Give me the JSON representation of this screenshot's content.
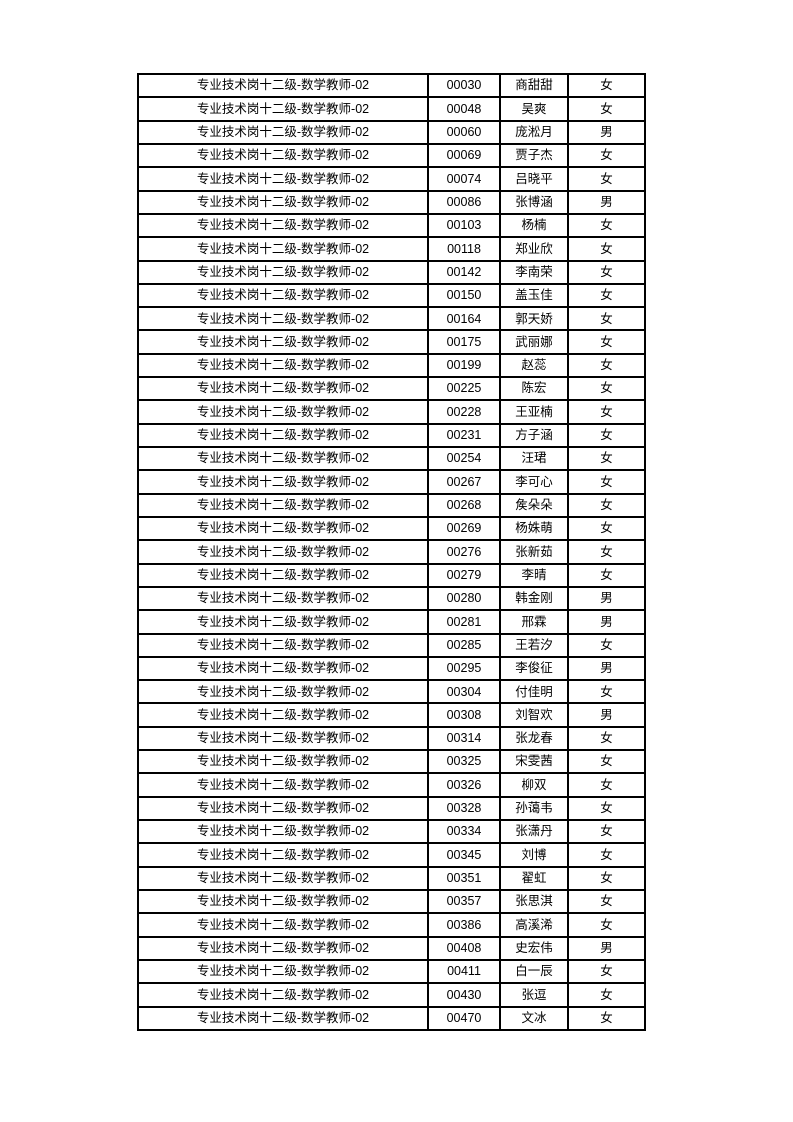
{
  "page": {
    "background": "#ffffff",
    "text_color": "#000000"
  },
  "table": {
    "border_color": "#000000",
    "column_keys": [
      "position",
      "number",
      "name",
      "gender"
    ],
    "rows": [
      [
        "专业技术岗十二级-数学教师-02",
        "00030",
        "商甜甜",
        "女"
      ],
      [
        "专业技术岗十二级-数学教师-02",
        "00048",
        "吴爽",
        "女"
      ],
      [
        "专业技术岗十二级-数学教师-02",
        "00060",
        "庞淞月",
        "男"
      ],
      [
        "专业技术岗十二级-数学教师-02",
        "00069",
        "贾子杰",
        "女"
      ],
      [
        "专业技术岗十二级-数学教师-02",
        "00074",
        "吕晓平",
        "女"
      ],
      [
        "专业技术岗十二级-数学教师-02",
        "00086",
        "张博涵",
        "男"
      ],
      [
        "专业技术岗十二级-数学教师-02",
        "00103",
        "杨楠",
        "女"
      ],
      [
        "专业技术岗十二级-数学教师-02",
        "00118",
        "郑业欣",
        "女"
      ],
      [
        "专业技术岗十二级-数学教师-02",
        "00142",
        "李南荣",
        "女"
      ],
      [
        "专业技术岗十二级-数学教师-02",
        "00150",
        "盖玉佳",
        "女"
      ],
      [
        "专业技术岗十二级-数学教师-02",
        "00164",
        "郭天娇",
        "女"
      ],
      [
        "专业技术岗十二级-数学教师-02",
        "00175",
        "武丽娜",
        "女"
      ],
      [
        "专业技术岗十二级-数学教师-02",
        "00199",
        "赵蕊",
        "女"
      ],
      [
        "专业技术岗十二级-数学教师-02",
        "00225",
        "陈宏",
        "女"
      ],
      [
        "专业技术岗十二级-数学教师-02",
        "00228",
        "王亚楠",
        "女"
      ],
      [
        "专业技术岗十二级-数学教师-02",
        "00231",
        "方子涵",
        "女"
      ],
      [
        "专业技术岗十二级-数学教师-02",
        "00254",
        "汪珺",
        "女"
      ],
      [
        "专业技术岗十二级-数学教师-02",
        "00267",
        "李可心",
        "女"
      ],
      [
        "专业技术岗十二级-数学教师-02",
        "00268",
        "矦朵朵",
        "女"
      ],
      [
        "专业技术岗十二级-数学教师-02",
        "00269",
        "杨姝萌",
        "女"
      ],
      [
        "专业技术岗十二级-数学教师-02",
        "00276",
        "张新茹",
        "女"
      ],
      [
        "专业技术岗十二级-数学教师-02",
        "00279",
        "李晴",
        "女"
      ],
      [
        "专业技术岗十二级-数学教师-02",
        "00280",
        "韩金刚",
        "男"
      ],
      [
        "专业技术岗十二级-数学教师-02",
        "00281",
        "邢霖",
        "男"
      ],
      [
        "专业技术岗十二级-数学教师-02",
        "00285",
        "王若汐",
        "女"
      ],
      [
        "专业技术岗十二级-数学教师-02",
        "00295",
        "李俊征",
        "男"
      ],
      [
        "专业技术岗十二级-数学教师-02",
        "00304",
        "付佳明",
        "女"
      ],
      [
        "专业技术岗十二级-数学教师-02",
        "00308",
        "刘智欢",
        "男"
      ],
      [
        "专业技术岗十二级-数学教师-02",
        "00314",
        "张龙春",
        "女"
      ],
      [
        "专业技术岗十二级-数学教师-02",
        "00325",
        "宋雯茜",
        "女"
      ],
      [
        "专业技术岗十二级-数学教师-02",
        "00326",
        "柳双",
        "女"
      ],
      [
        "专业技术岗十二级-数学教师-02",
        "00328",
        "孙蔼韦",
        "女"
      ],
      [
        "专业技术岗十二级-数学教师-02",
        "00334",
        "张潇丹",
        "女"
      ],
      [
        "专业技术岗十二级-数学教师-02",
        "00345",
        "刘博",
        "女"
      ],
      [
        "专业技术岗十二级-数学教师-02",
        "00351",
        "翟虹",
        "女"
      ],
      [
        "专业技术岗十二级-数学教师-02",
        "00357",
        "张思淇",
        "女"
      ],
      [
        "专业技术岗十二级-数学教师-02",
        "00386",
        "高溪浠",
        "女"
      ],
      [
        "专业技术岗十二级-数学教师-02",
        "00408",
        "史宏伟",
        "男"
      ],
      [
        "专业技术岗十二级-数学教师-02",
        "00411",
        "白一辰",
        "女"
      ],
      [
        "专业技术岗十二级-数学教师-02",
        "00430",
        "张逗",
        "女"
      ],
      [
        "专业技术岗十二级-数学教师-02",
        "00470",
        "文冰",
        "女"
      ]
    ]
  }
}
